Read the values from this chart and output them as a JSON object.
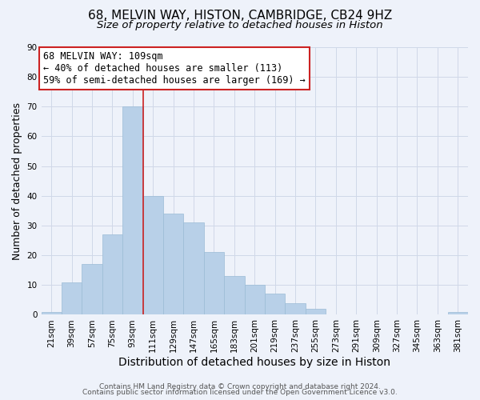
{
  "title1": "68, MELVIN WAY, HISTON, CAMBRIDGE, CB24 9HZ",
  "title2": "Size of property relative to detached houses in Histon",
  "xlabel": "Distribution of detached houses by size in Histon",
  "ylabel": "Number of detached properties",
  "bins": [
    "21sqm",
    "39sqm",
    "57sqm",
    "75sqm",
    "93sqm",
    "111sqm",
    "129sqm",
    "147sqm",
    "165sqm",
    "183sqm",
    "201sqm",
    "219sqm",
    "237sqm",
    "255sqm",
    "273sqm",
    "291sqm",
    "309sqm",
    "327sqm",
    "345sqm",
    "363sqm",
    "381sqm"
  ],
  "counts": [
    1,
    11,
    17,
    27,
    70,
    40,
    34,
    31,
    21,
    13,
    10,
    7,
    4,
    2,
    0,
    0,
    0,
    0,
    0,
    0,
    1
  ],
  "bar_color": "#b8d0e8",
  "bar_edge_color": "#9bbcd6",
  "vline_x_idx": 4,
  "vline_color": "#cc2222",
  "annotation_text": "68 MELVIN WAY: 109sqm\n← 40% of detached houses are smaller (113)\n59% of semi-detached houses are larger (169) →",
  "annotation_box_color": "#ffffff",
  "annotation_box_edge_color": "#cc2222",
  "ylim": [
    0,
    90
  ],
  "yticks": [
    0,
    10,
    20,
    30,
    40,
    50,
    60,
    70,
    80,
    90
  ],
  "footer1": "Contains HM Land Registry data © Crown copyright and database right 2024.",
  "footer2": "Contains public sector information licensed under the Open Government Licence v3.0.",
  "grid_color": "#d0d8e8",
  "background_color": "#eef2fa",
  "title1_fontsize": 11,
  "title2_fontsize": 9.5,
  "xlabel_fontsize": 10,
  "ylabel_fontsize": 9,
  "tick_fontsize": 7.5,
  "annotation_fontsize": 8.5,
  "footer_fontsize": 6.5
}
